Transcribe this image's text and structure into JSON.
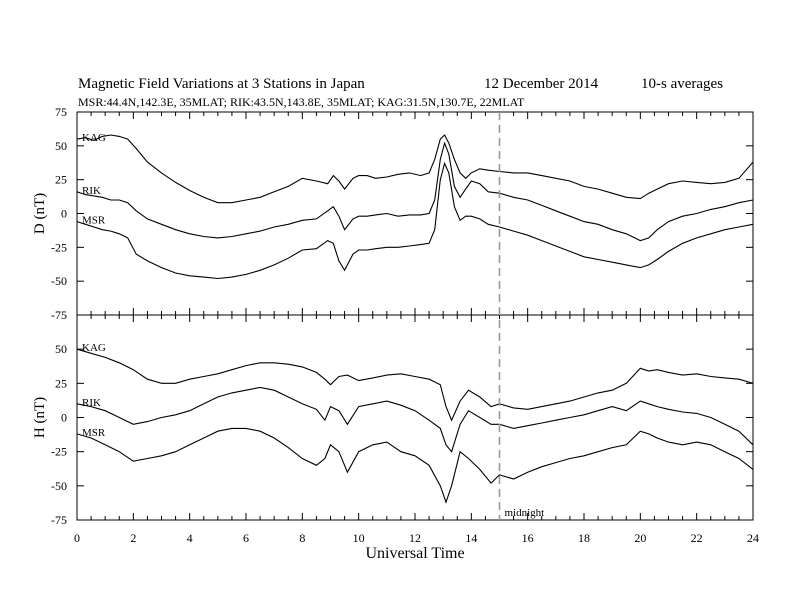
{
  "header": {
    "title": "Magnetic Field Variations at 3 Stations in Japan",
    "date": "12 December 2014",
    "averaging": "10-s averages",
    "stations_line": "MSR:44.4N,142.3E, 35MLAT;  RIK:43.5N,143.8E, 35MLAT;  KAG:31.5N,130.7E, 22MLAT"
  },
  "annotation": {
    "midnight_label": "midnight",
    "midnight_x": 15
  },
  "colors": {
    "trace": "#000000",
    "midnight_line": "#999999"
  },
  "chart_data": [
    {
      "type": "line",
      "panel": "D",
      "ylabel": "D (nT)",
      "xlabel": "",
      "xlim": [
        0,
        24
      ],
      "ylim": [
        -75,
        75
      ],
      "xticks": [
        0,
        2,
        4,
        6,
        8,
        10,
        12,
        14,
        16,
        18,
        20,
        22,
        24
      ],
      "yticks": [
        -75,
        -50,
        -25,
        0,
        25,
        50,
        75
      ],
      "series": [
        {
          "name": "KAG",
          "x": [
            0,
            0.3,
            0.6,
            0.9,
            1.2,
            1.5,
            1.8,
            2.1,
            2.5,
            3,
            3.5,
            4,
            4.5,
            5,
            5.5,
            6,
            6.5,
            7,
            7.5,
            8,
            8.5,
            8.9,
            9.1,
            9.3,
            9.5,
            9.8,
            10,
            10.3,
            10.6,
            11,
            11.4,
            11.8,
            12.2,
            12.5,
            12.7,
            12.9,
            13.05,
            13.2,
            13.4,
            13.6,
            13.8,
            14,
            14.3,
            14.6,
            15,
            15.5,
            16,
            16.5,
            17,
            17.5,
            18,
            18.5,
            19,
            19.5,
            20,
            20.3,
            20.6,
            21,
            21.5,
            22,
            22.5,
            23,
            23.5,
            24
          ],
          "values": [
            55,
            56,
            54,
            57,
            58,
            57,
            55,
            48,
            38,
            30,
            23,
            17,
            12,
            8,
            8,
            10,
            12,
            16,
            20,
            26,
            24,
            22,
            28,
            24,
            18,
            26,
            28,
            28,
            26,
            27,
            29,
            30,
            28,
            30,
            40,
            55,
            58,
            52,
            40,
            30,
            26,
            30,
            33,
            32,
            31,
            30,
            30,
            28,
            26,
            24,
            20,
            18,
            15,
            12,
            11,
            15,
            18,
            22,
            24,
            23,
            22,
            23,
            26,
            38
          ]
        },
        {
          "name": "RIK",
          "x": [
            0,
            0.3,
            0.6,
            0.9,
            1.2,
            1.5,
            1.8,
            2.1,
            2.5,
            3,
            3.5,
            4,
            4.5,
            5,
            5.5,
            6,
            6.5,
            7,
            7.5,
            8,
            8.5,
            8.9,
            9.1,
            9.3,
            9.5,
            9.8,
            10,
            10.3,
            10.6,
            11,
            11.4,
            11.8,
            12.2,
            12.5,
            12.7,
            12.9,
            13.05,
            13.2,
            13.4,
            13.6,
            13.8,
            14,
            14.3,
            14.6,
            15,
            15.5,
            16,
            16.5,
            17,
            17.5,
            18,
            18.5,
            19,
            19.5,
            20,
            20.3,
            20.6,
            21,
            21.5,
            22,
            22.5,
            23,
            23.5,
            24
          ],
          "values": [
            16,
            14,
            13,
            12,
            10,
            10,
            8,
            2,
            -4,
            -8,
            -12,
            -15,
            -17,
            -18,
            -17,
            -15,
            -13,
            -10,
            -8,
            -5,
            -4,
            2,
            5,
            -2,
            -12,
            -4,
            -2,
            -2,
            -1,
            0,
            -2,
            -1,
            -1,
            0,
            10,
            40,
            52,
            44,
            20,
            12,
            18,
            24,
            22,
            16,
            15,
            12,
            10,
            6,
            2,
            -2,
            -6,
            -8,
            -12,
            -15,
            -20,
            -18,
            -12,
            -6,
            -2,
            0,
            3,
            5,
            8,
            10
          ]
        },
        {
          "name": "MSR",
          "x": [
            0,
            0.3,
            0.6,
            0.9,
            1.2,
            1.5,
            1.8,
            2.1,
            2.5,
            3,
            3.5,
            4,
            4.5,
            5,
            5.5,
            6,
            6.5,
            7,
            7.5,
            8,
            8.5,
            8.9,
            9.1,
            9.3,
            9.5,
            9.8,
            10,
            10.3,
            10.6,
            11,
            11.4,
            11.8,
            12.2,
            12.5,
            12.7,
            12.9,
            13.05,
            13.2,
            13.4,
            13.6,
            13.8,
            14,
            14.3,
            14.6,
            15,
            15.5,
            16,
            16.5,
            17,
            17.5,
            18,
            18.5,
            19,
            19.5,
            20,
            20.3,
            20.6,
            21,
            21.5,
            22,
            22.5,
            23,
            23.5,
            24
          ],
          "values": [
            -6,
            -8,
            -10,
            -12,
            -13,
            -15,
            -18,
            -30,
            -35,
            -40,
            -44,
            -46,
            -47,
            -48,
            -47,
            -45,
            -42,
            -38,
            -33,
            -27,
            -26,
            -20,
            -22,
            -35,
            -42,
            -30,
            -27,
            -27,
            -26,
            -25,
            -25,
            -24,
            -23,
            -22,
            -12,
            25,
            37,
            30,
            5,
            -5,
            -2,
            -2,
            -4,
            -8,
            -10,
            -13,
            -16,
            -20,
            -24,
            -28,
            -32,
            -34,
            -36,
            -38,
            -40,
            -38,
            -34,
            -28,
            -22,
            -18,
            -15,
            -12,
            -10,
            -8
          ]
        }
      ]
    },
    {
      "type": "line",
      "panel": "H",
      "ylabel": "H (nT)",
      "xlabel": "Universal Time",
      "xlim": [
        0,
        24
      ],
      "ylim": [
        -75,
        75
      ],
      "xticks": [
        0,
        2,
        4,
        6,
        8,
        10,
        12,
        14,
        16,
        18,
        20,
        22,
        24
      ],
      "yticks": [
        -75,
        -50,
        -25,
        0,
        25,
        50,
        75
      ],
      "series": [
        {
          "name": "KAG",
          "x": [
            0,
            0.5,
            1,
            1.5,
            2,
            2.5,
            3,
            3.5,
            4,
            4.5,
            5,
            5.5,
            6,
            6.5,
            7,
            7.5,
            8,
            8.5,
            8.8,
            9,
            9.3,
            9.6,
            10,
            10.5,
            11,
            11.5,
            12,
            12.5,
            12.9,
            13.1,
            13.3,
            13.6,
            13.9,
            14.3,
            14.7,
            15,
            15.5,
            16,
            16.5,
            17,
            17.5,
            18,
            18.5,
            19,
            19.5,
            20,
            20.3,
            20.6,
            21,
            21.5,
            22,
            22.5,
            23,
            23.5,
            24
          ],
          "values": [
            50,
            47,
            44,
            40,
            35,
            28,
            25,
            25,
            28,
            30,
            32,
            35,
            38,
            40,
            40,
            39,
            37,
            33,
            28,
            24,
            30,
            31,
            27,
            29,
            31,
            32,
            30,
            28,
            24,
            8,
            -2,
            12,
            20,
            15,
            8,
            10,
            7,
            6,
            8,
            10,
            12,
            15,
            18,
            20,
            25,
            36,
            34,
            35,
            33,
            31,
            32,
            30,
            29,
            28,
            25
          ]
        },
        {
          "name": "RIK",
          "x": [
            0,
            0.5,
            1,
            1.5,
            2,
            2.5,
            3,
            3.5,
            4,
            4.5,
            5,
            5.5,
            6,
            6.5,
            7,
            7.5,
            8,
            8.5,
            8.8,
            9,
            9.3,
            9.6,
            10,
            10.5,
            11,
            11.5,
            12,
            12.5,
            12.9,
            13.1,
            13.3,
            13.6,
            13.9,
            14.3,
            14.7,
            15,
            15.5,
            16,
            16.5,
            17,
            17.5,
            18,
            18.5,
            19,
            19.5,
            20,
            20.3,
            20.6,
            21,
            21.5,
            22,
            22.5,
            23,
            23.5,
            24
          ],
          "values": [
            10,
            8,
            5,
            0,
            -5,
            -3,
            0,
            2,
            5,
            10,
            15,
            18,
            20,
            22,
            20,
            15,
            10,
            6,
            -2,
            8,
            5,
            -5,
            8,
            10,
            12,
            9,
            5,
            -2,
            -8,
            -20,
            -25,
            -5,
            5,
            0,
            -5,
            -5,
            -8,
            -6,
            -4,
            -2,
            0,
            2,
            5,
            8,
            5,
            12,
            10,
            8,
            6,
            4,
            3,
            0,
            -5,
            -10,
            -20
          ]
        },
        {
          "name": "MSR",
          "x": [
            0,
            0.5,
            1,
            1.5,
            2,
            2.5,
            3,
            3.5,
            4,
            4.5,
            5,
            5.5,
            6,
            6.5,
            7,
            7.5,
            8,
            8.5,
            8.8,
            9,
            9.3,
            9.6,
            10,
            10.5,
            11,
            11.5,
            12,
            12.5,
            12.9,
            13.1,
            13.3,
            13.6,
            13.9,
            14.3,
            14.7,
            15,
            15.5,
            16,
            16.5,
            17,
            17.5,
            18,
            18.5,
            19,
            19.5,
            20,
            20.3,
            20.6,
            21,
            21.5,
            22,
            22.5,
            23,
            23.5,
            24
          ],
          "values": [
            -12,
            -15,
            -20,
            -25,
            -32,
            -30,
            -28,
            -25,
            -20,
            -15,
            -10,
            -8,
            -8,
            -10,
            -15,
            -22,
            -30,
            -35,
            -30,
            -20,
            -25,
            -40,
            -25,
            -20,
            -18,
            -25,
            -28,
            -35,
            -50,
            -62,
            -50,
            -25,
            -30,
            -38,
            -48,
            -42,
            -45,
            -40,
            -36,
            -33,
            -30,
            -28,
            -25,
            -22,
            -20,
            -10,
            -12,
            -15,
            -18,
            -20,
            -18,
            -20,
            -25,
            -30,
            -38
          ]
        }
      ]
    }
  ]
}
